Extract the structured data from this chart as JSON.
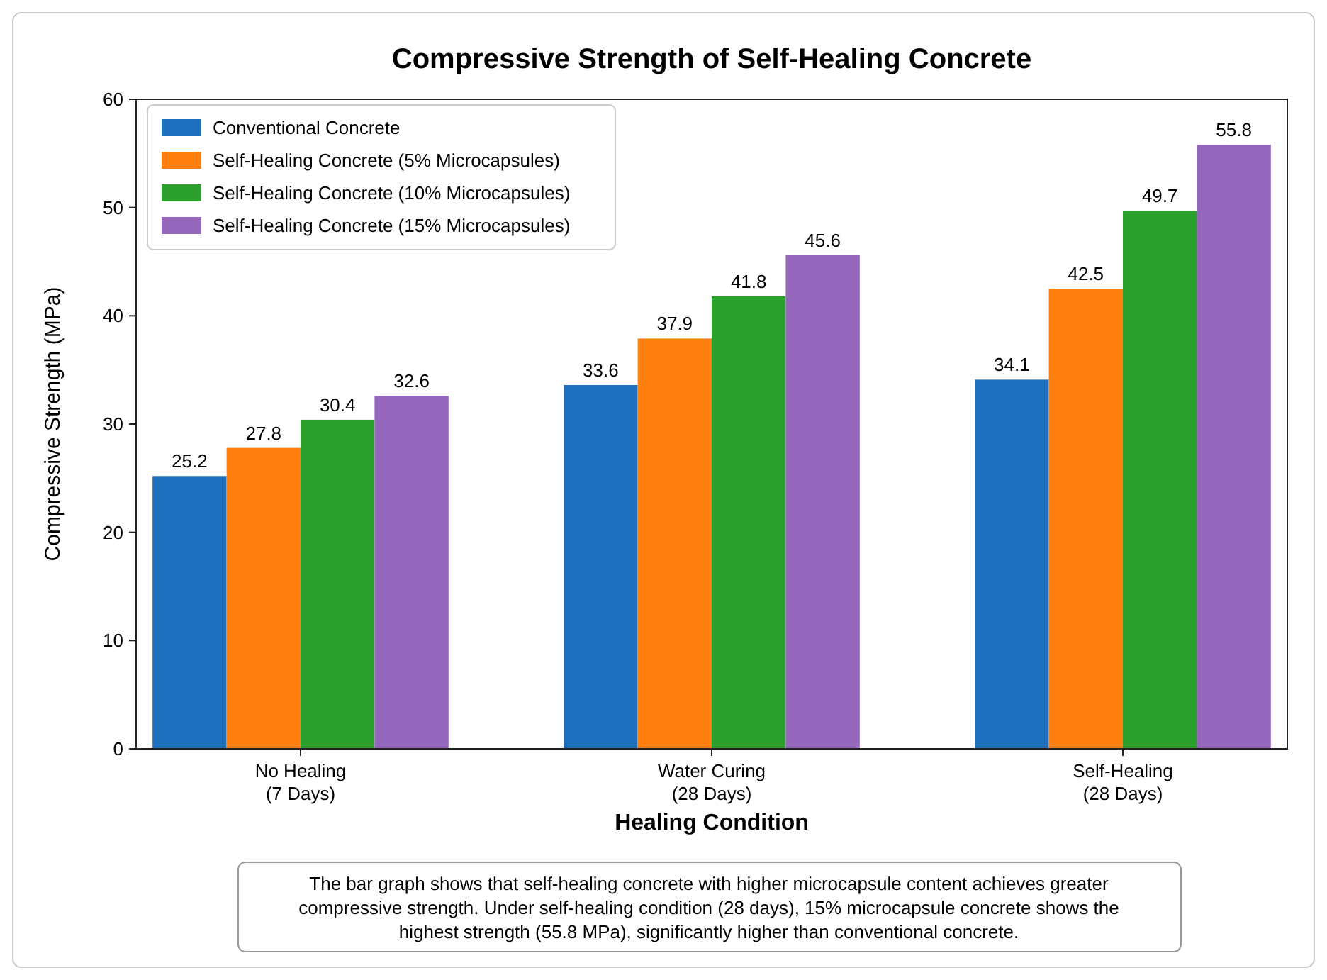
{
  "chart_data": {
    "type": "bar",
    "title": "Compressive Strength of Self-Healing Concrete",
    "xlabel": "Healing Condition",
    "ylabel": "Compressive Strength (MPa)",
    "categories": [
      "No Healing\n(7 Days)",
      "Water Curing\n(28 Days)",
      "Self-Healing\n(28 Days)"
    ],
    "series": [
      {
        "name": "Conventional Concrete",
        "color": "#1f6fbf",
        "values": [
          25.2,
          33.6,
          34.1
        ]
      },
      {
        "name": "Self-Healing Concrete (5% Microcapsules)",
        "color": "#ff7f0e",
        "values": [
          27.8,
          37.9,
          42.5
        ]
      },
      {
        "name": "Self-Healing Concrete (10% Microcapsules)",
        "color": "#2ca02c",
        "values": [
          30.4,
          41.8,
          49.7
        ]
      },
      {
        "name": "Self-Healing Concrete (15% Microcapsules)",
        "color": "#9467bd",
        "values": [
          32.6,
          45.6,
          55.8
        ]
      }
    ],
    "ylim": [
      0,
      60
    ],
    "yticks": [
      0,
      10,
      20,
      30,
      40,
      50,
      60
    ],
    "grid": false,
    "legend": "top left",
    "data_labels": true,
    "annotations": [
      "The bar graph shows that self-healing concrete with higher microcapsule content achieves greater compressive strength. Under self-healing condition (28 days), 15% microcapsule concrete shows the highest strength (55.8 MPa), significantly higher than conventional concrete."
    ]
  }
}
